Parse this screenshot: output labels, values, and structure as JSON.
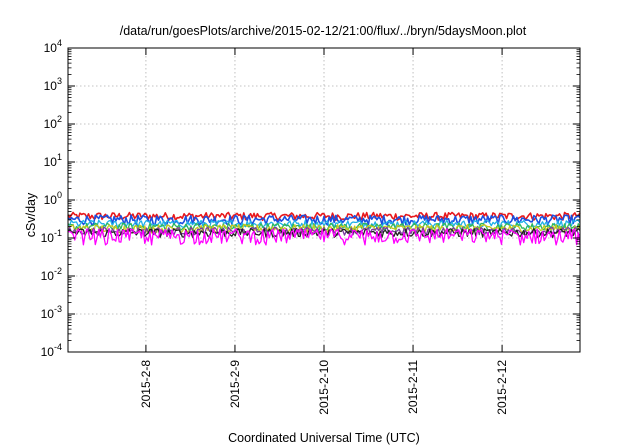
{
  "chart_data": {
    "type": "line",
    "title": "/data/run/goesPlots/archive/2015-02-12/21:00/flux/../bryn/5daysMoon.plot",
    "xlabel": "Coordinated Universal Time (UTC)",
    "ylabel": "cSv/day",
    "y_scale": "log",
    "ylim": [
      0.0001,
      10000
    ],
    "y_ticks": [
      {
        "base": "10",
        "exp": "-4"
      },
      {
        "base": "10",
        "exp": "-3"
      },
      {
        "base": "10",
        "exp": "-2"
      },
      {
        "base": "10",
        "exp": "-1"
      },
      {
        "base": "10",
        "exp": "0"
      },
      {
        "base": "10",
        "exp": "1"
      },
      {
        "base": "10",
        "exp": "2"
      },
      {
        "base": "10",
        "exp": "3"
      },
      {
        "base": "10",
        "exp": "4"
      }
    ],
    "xlim": [
      "2015-02-07T03:00",
      "2015-02-12T21:00"
    ],
    "x_ticks": [
      "2015-2-8",
      "2015-2-9",
      "2015-2-10",
      "2015-2-11",
      "2015-2-12"
    ],
    "grid": true,
    "legend": "none",
    "series": [
      {
        "color": "#e8181c",
        "level": 0.38,
        "noise": 0.1
      },
      {
        "color": "#1a4fe0",
        "level": 0.31,
        "noise": 0.1
      },
      {
        "color": "#1fb0e8",
        "level": 0.24,
        "noise": 0.06
      },
      {
        "color": "#2fb85a",
        "level": 0.2,
        "noise": 0.05
      },
      {
        "color": "#c8c820",
        "level": 0.18,
        "noise": 0.05
      },
      {
        "color": "#7a3aa0",
        "level": 0.155,
        "noise": 0.04
      },
      {
        "color": "#222222",
        "level": 0.14,
        "noise": 0.04
      },
      {
        "color": "#ff00ff",
        "level": 0.12,
        "noise": 0.06
      }
    ]
  }
}
